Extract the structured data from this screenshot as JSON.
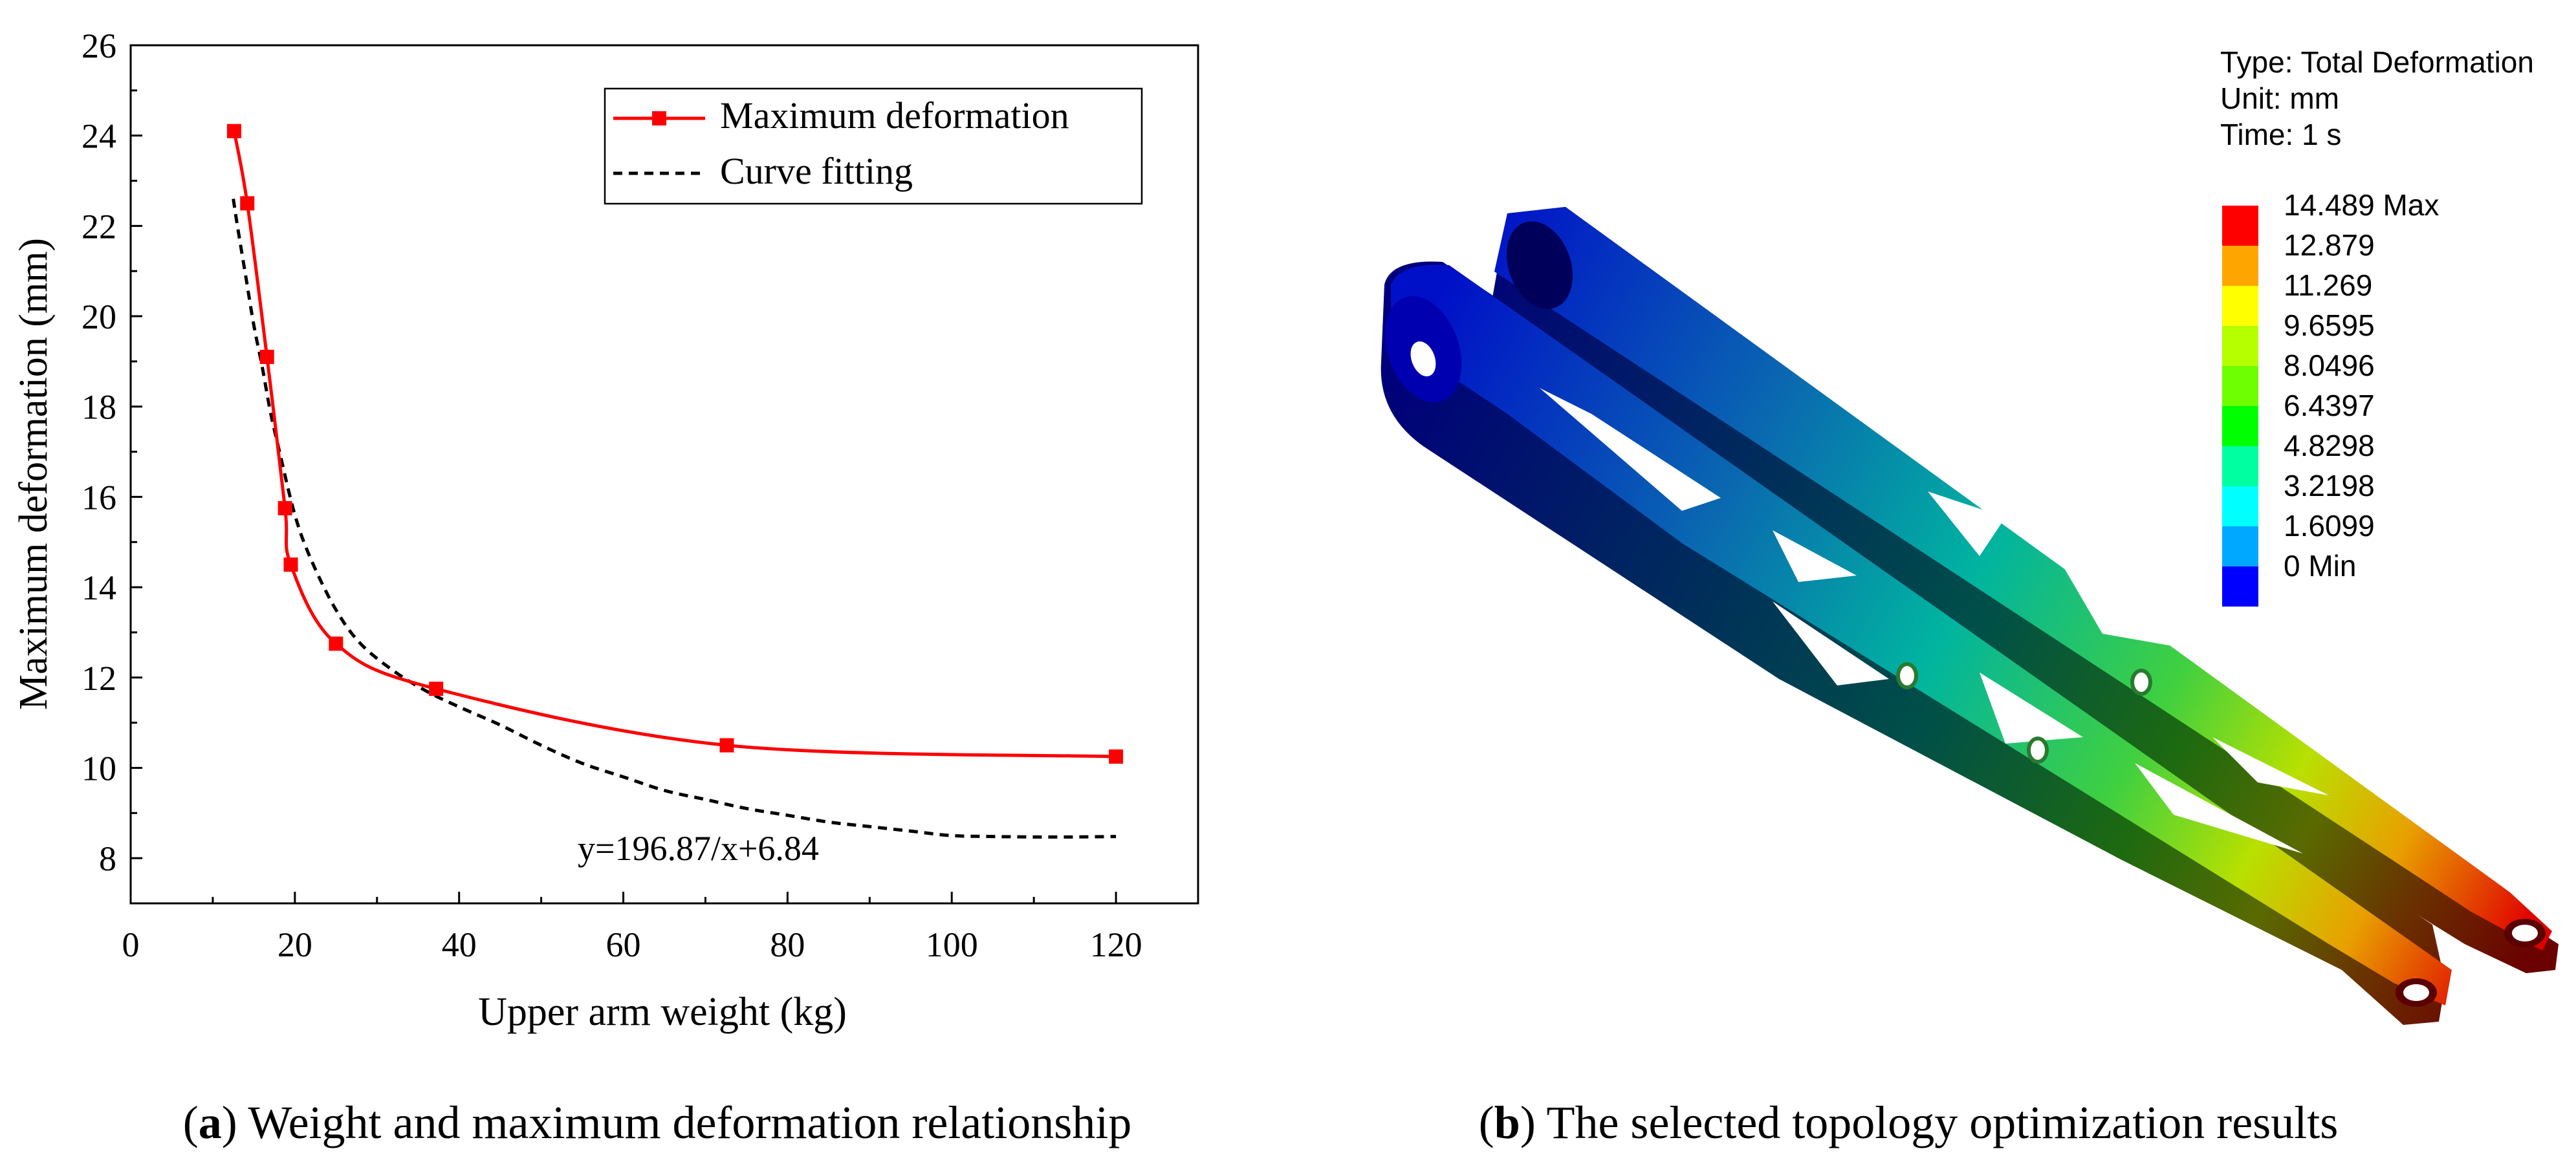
{
  "chart_data": {
    "type": "line",
    "xlabel": "Upper arm weight (kg)",
    "ylabel": "Maximum deformation (mm)",
    "xlim": [
      0,
      130
    ],
    "ylim": [
      7,
      26
    ],
    "xticks": [
      0,
      20,
      40,
      60,
      80,
      100,
      120
    ],
    "xtick_labels": [
      "0",
      "20",
      "40",
      "60",
      "80",
      "100",
      "120"
    ],
    "yticks": [
      8,
      10,
      12,
      14,
      16,
      18,
      20,
      22,
      24,
      26
    ],
    "ytick_labels": [
      "8",
      "10",
      "12",
      "14",
      "16",
      "18",
      "20",
      "22",
      "24",
      "26"
    ],
    "grid": false,
    "legend_position": "top-right",
    "series": [
      {
        "name": "Maximum deformation",
        "color": "#ff0000",
        "style": "solid-with-square-markers",
        "x": [
          12.6,
          14.2,
          16.6,
          18.8,
          19.5,
          25.0,
          37.2,
          72.6,
          120.0
        ],
        "y": [
          24.1,
          22.5,
          19.1,
          15.75,
          14.5,
          12.75,
          11.75,
          10.5,
          10.25
        ]
      },
      {
        "name": "Curve fitting",
        "color": "#000000",
        "style": "dashed",
        "x": [
          12.5,
          13,
          14,
          15,
          16,
          17,
          18,
          20,
          22,
          25,
          28,
          32,
          36,
          40,
          45,
          50,
          55,
          60,
          65,
          70,
          75,
          80,
          85,
          90,
          95,
          100,
          105,
          110,
          115,
          120
        ],
        "y": [
          22.6,
          22.0,
          20.9,
          19.8,
          18.9,
          17.9,
          17.1,
          15.6,
          14.6,
          13.5,
          12.75,
          12.15,
          11.7,
          11.35,
          10.95,
          10.5,
          10.1,
          9.8,
          9.5,
          9.3,
          9.1,
          8.95,
          8.8,
          8.7,
          8.6,
          8.5,
          8.48,
          8.47,
          8.47,
          8.48
        ]
      }
    ],
    "annotation": "y=196.87/x+6.84"
  },
  "captions": {
    "a_label": "a",
    "a_text": " Weight and maximum deformation relationship",
    "b_label": "b",
    "b_text": " The selected topology optimization results"
  },
  "fem_legend": {
    "type_line": "Type: Total Deformation",
    "unit_line": "Unit: mm",
    "time_line": "Time: 1 s",
    "levels": [
      {
        "label": "14.489 Max",
        "color": "#ff0000"
      },
      {
        "label": "12.879",
        "color": "#ffa500"
      },
      {
        "label": "11.269",
        "color": "#ffff00"
      },
      {
        "label": "9.6595",
        "color": "#b5ff00"
      },
      {
        "label": "8.0496",
        "color": "#6eff00"
      },
      {
        "label": "6.4397",
        "color": "#00ff00"
      },
      {
        "label": "4.8298",
        "color": "#00ffa0"
      },
      {
        "label": "3.2198",
        "color": "#00ffff"
      },
      {
        "label": "1.6099",
        "color": "#00a8ff"
      },
      {
        "label": "0 Min",
        "color": "#0000ff"
      }
    ]
  }
}
